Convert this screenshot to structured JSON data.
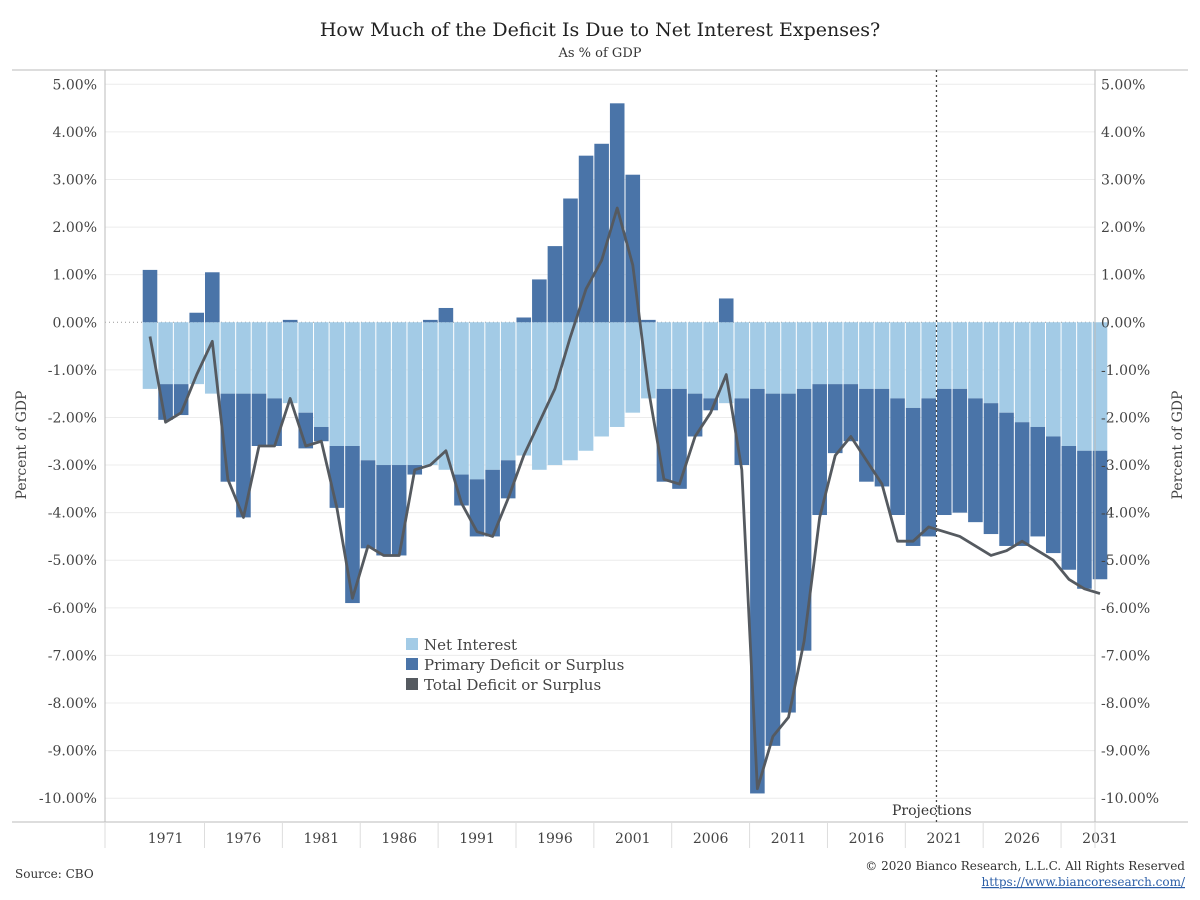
{
  "source_text": "Source: CBO",
  "copyright_text": "© 2020 Bianco Research, L.L.C. All Rights Reserved",
  "url_text": "https://www.biancoresearch.com/",
  "chart_data": {
    "type": "bar",
    "title": "How Much of the Deficit Is Due to Net Interest Expenses?",
    "subtitle": "As % of GDP",
    "ylabel": "Percent of GDP",
    "ylabel_right": "Percent of GDP",
    "ylim": [
      -10.5,
      5.3
    ],
    "yticks": [
      5,
      4,
      3,
      2,
      1,
      0,
      -1,
      -2,
      -3,
      -4,
      -5,
      -6,
      -7,
      -8,
      -9,
      -10
    ],
    "ytick_labels": [
      "5.00%",
      "4.00%",
      "3.00%",
      "2.00%",
      "1.00%",
      "0.00%",
      "-1.00%",
      "-2.00%",
      "-3.00%",
      "-4.00%",
      "-5.00%",
      "-6.00%",
      "-7.00%",
      "-8.00%",
      "-9.00%",
      "-10.00%"
    ],
    "xticks": [
      1971,
      1976,
      1981,
      1986,
      1991,
      1996,
      2001,
      2006,
      2011,
      2016,
      2021,
      2026,
      2031
    ],
    "xtick_labels": [
      "1971",
      "1976",
      "1981",
      "1986",
      "1991",
      "1996",
      "2001",
      "2006",
      "2011",
      "2016",
      "2021",
      "2026",
      "2031"
    ],
    "projection_start": 2020,
    "projection_label": "Projections",
    "legend_position": "lower-center",
    "colors": {
      "net_interest": "#a3cbe6",
      "primary": "#4a74a8",
      "total": "#555a60"
    },
    "x": [
      1970,
      1971,
      1972,
      1973,
      1974,
      1975,
      1976,
      1977,
      1978,
      1979,
      1980,
      1981,
      1982,
      1983,
      1984,
      1985,
      1986,
      1987,
      1988,
      1989,
      1990,
      1991,
      1992,
      1993,
      1994,
      1995,
      1996,
      1997,
      1998,
      1999,
      2000,
      2001,
      2002,
      2003,
      2004,
      2005,
      2006,
      2007,
      2008,
      2009,
      2010,
      2011,
      2012,
      2013,
      2014,
      2015,
      2016,
      2017,
      2018,
      2019,
      2020,
      2021,
      2022,
      2023,
      2024,
      2025,
      2026,
      2027,
      2028,
      2029,
      2030,
      2031
    ],
    "series": [
      {
        "name": "Net Interest",
        "key": "net_interest",
        "values": [
          -1.4,
          -1.3,
          -1.3,
          -1.3,
          -1.5,
          -1.5,
          -1.5,
          -1.5,
          -1.6,
          -1.7,
          -1.9,
          -2.2,
          -2.6,
          -2.6,
          -2.9,
          -3.0,
          -3.0,
          -3.0,
          -3.0,
          -3.1,
          -3.2,
          -3.3,
          -3.1,
          -2.9,
          -2.8,
          -3.1,
          -3.0,
          -2.9,
          -2.7,
          -2.4,
          -2.2,
          -1.9,
          -1.6,
          -1.4,
          -1.4,
          -1.5,
          -1.6,
          -1.7,
          -1.6,
          -1.4,
          -1.5,
          -1.5,
          -1.4,
          -1.3,
          -1.3,
          -1.3,
          -1.4,
          -1.4,
          -1.6,
          -1.8,
          -1.6,
          -1.4,
          -1.4,
          -1.6,
          -1.7,
          -1.9,
          -2.1,
          -2.2,
          -2.4,
          -2.6,
          -2.7,
          -2.7
        ]
      },
      {
        "name": "Primary Deficit or Surplus",
        "key": "primary",
        "values": [
          1.1,
          -0.75,
          -0.65,
          0.2,
          1.05,
          -1.85,
          -2.6,
          -1.1,
          -1.0,
          0.05,
          -0.75,
          -0.3,
          -1.3,
          -3.3,
          -1.85,
          -1.9,
          -1.9,
          -0.2,
          0.05,
          0.3,
          -0.65,
          -1.2,
          -1.4,
          -0.8,
          0.1,
          0.9,
          1.6,
          2.6,
          3.5,
          3.75,
          4.6,
          3.1,
          0.05,
          -1.95,
          -2.1,
          -0.9,
          -0.25,
          0.5,
          -1.4,
          -8.5,
          -7.4,
          -6.7,
          -5.5,
          -2.75,
          -1.45,
          -1.2,
          -1.95,
          -2.05,
          -2.45,
          -2.9,
          -2.9,
          -2.65,
          -2.6,
          -2.6,
          -2.75,
          -2.8,
          -2.6,
          -2.3,
          -2.45,
          -2.6,
          -2.9,
          -2.7
        ]
      },
      {
        "name": "Total Deficit or Surplus",
        "key": "total",
        "values": [
          -0.3,
          -2.1,
          -1.9,
          -1.1,
          -0.4,
          -3.3,
          -4.1,
          -2.6,
          -2.6,
          -1.6,
          -2.6,
          -2.5,
          -3.9,
          -5.8,
          -4.7,
          -4.9,
          -4.9,
          -3.1,
          -3.0,
          -2.7,
          -3.8,
          -4.4,
          -4.5,
          -3.7,
          -2.8,
          -2.1,
          -1.4,
          -0.3,
          0.7,
          1.3,
          2.4,
          1.2,
          -1.4,
          -3.3,
          -3.4,
          -2.4,
          -1.9,
          -1.1,
          -3.1,
          -9.8,
          -8.7,
          -8.3,
          -6.7,
          -4.1,
          -2.8,
          -2.4,
          -2.9,
          -3.4,
          -4.6,
          -4.6,
          -4.3,
          -4.4,
          -4.5,
          -4.7,
          -4.9,
          -4.8,
          -4.6,
          -4.8,
          -5.0,
          -5.4,
          -5.6,
          -5.7
        ]
      }
    ]
  }
}
